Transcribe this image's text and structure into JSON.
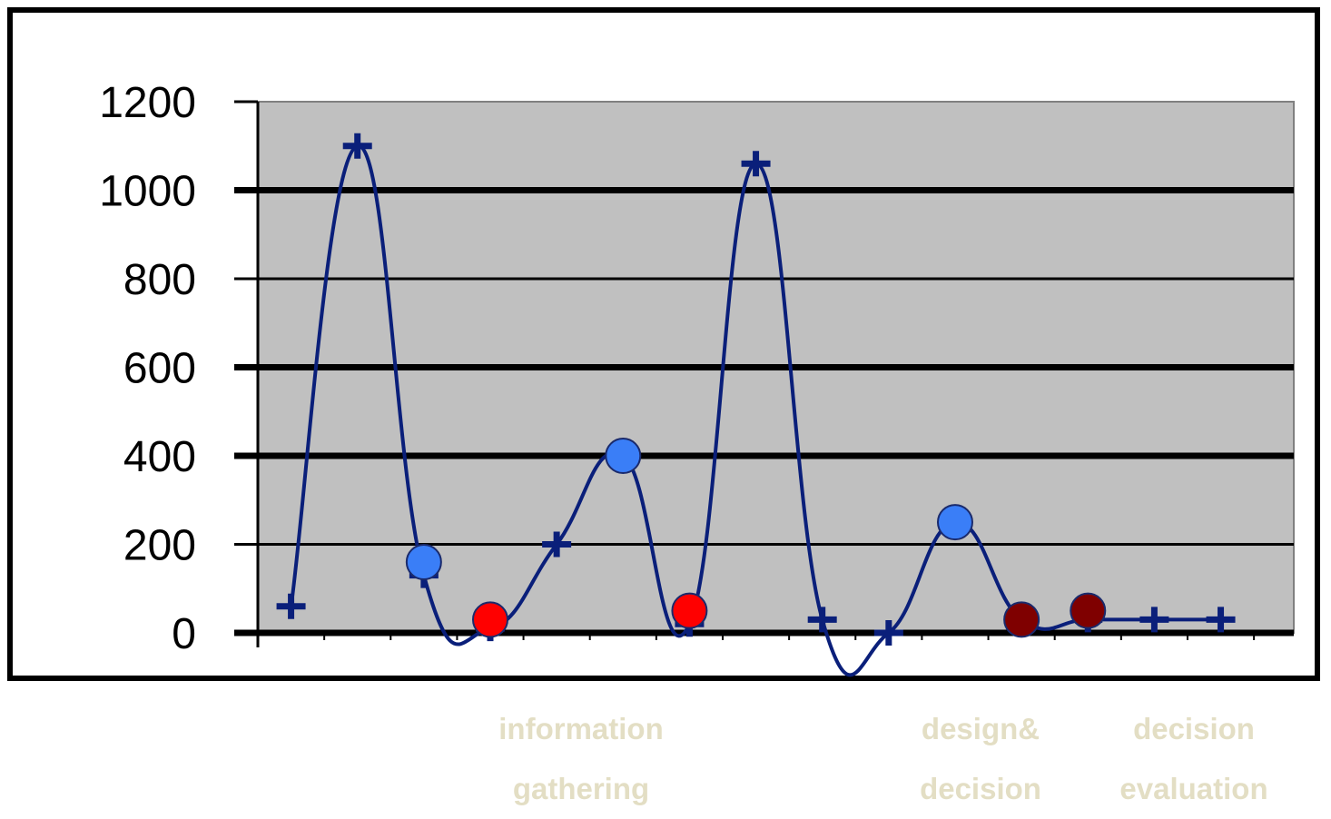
{
  "chart_data": {
    "type": "line",
    "ylim": [
      0,
      1200
    ],
    "yticks": [
      "1200",
      "1000",
      "800",
      "600",
      "400",
      "200",
      "0"
    ],
    "grid": true,
    "plot_background": "#c0c0c0",
    "line_color": "#0a1f7a",
    "series": [
      {
        "values": [
          {
            "x": 0.5,
            "y": 60
          },
          {
            "x": 1.5,
            "y": 1100
          },
          {
            "x": 2.5,
            "y": 130
          },
          {
            "x": 3.5,
            "y": 10
          },
          {
            "x": 4.5,
            "y": 200
          },
          {
            "x": 5.5,
            "y": 400
          },
          {
            "x": 6.5,
            "y": 20
          },
          {
            "x": 7.5,
            "y": 1060
          },
          {
            "x": 8.5,
            "y": 30
          },
          {
            "x": 9.5,
            "y": 0
          },
          {
            "x": 10.5,
            "y": 250
          },
          {
            "x": 11.5,
            "y": 30
          },
          {
            "x": 12.5,
            "y": 30
          },
          {
            "x": 13.5,
            "y": 30
          },
          {
            "x": 14.5,
            "y": 30
          }
        ]
      }
    ],
    "markers": [
      {
        "x": 2.5,
        "y": 160,
        "color": "#3a7ef7"
      },
      {
        "x": 5.5,
        "y": 400,
        "color": "#3a7ef7"
      },
      {
        "x": 10.5,
        "y": 250,
        "color": "#3a7ef7"
      },
      {
        "x": 3.5,
        "y": 30,
        "color": "#ff0000"
      },
      {
        "x": 6.5,
        "y": 50,
        "color": "#ff0000"
      },
      {
        "x": 11.5,
        "y": 30,
        "color": "#7f0000"
      },
      {
        "x": 12.5,
        "y": 50,
        "color": "#7f0000"
      }
    ]
  },
  "phase_labels": {
    "information_gathering": [
      "information",
      "gathering"
    ],
    "design_decision": [
      "design&",
      "decision"
    ],
    "decision_evaluation": [
      "decision",
      "evaluation"
    ]
  }
}
